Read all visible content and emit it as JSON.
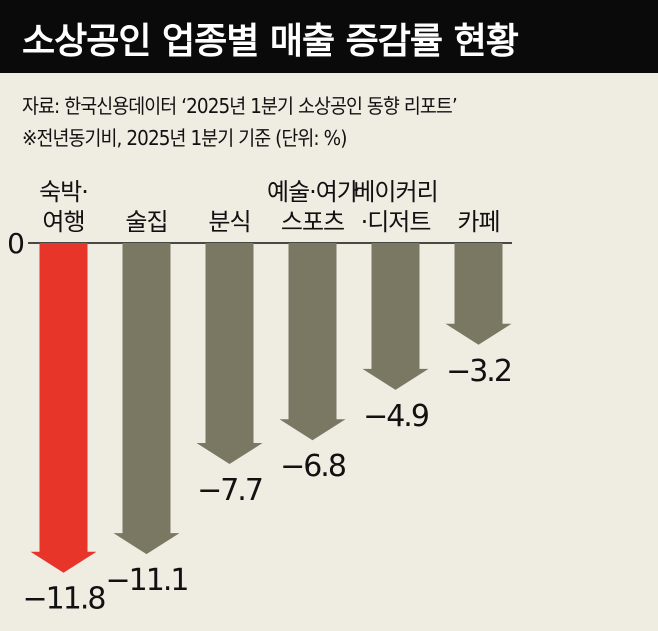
{
  "title": "소상공인 업종별 매출 증감률 현황",
  "source": "자료: 한국신용데이터 ‘2025년 1분기 소상공인 동향 리포트’",
  "note": "※전년동기비, 2025년 1분기 기준 (단위: %)",
  "colors": {
    "highlight": "#e8352a",
    "default": "#7a7862",
    "background": "#efece2",
    "title_bar": "#0a0a0a"
  },
  "chart_data": {
    "type": "bar",
    "title": "소상공인 업종별 매출 증감률 현황",
    "xlabel": "",
    "ylabel": "%",
    "zero_label": "0",
    "categories": [
      [
        "숙박·",
        "여행"
      ],
      [
        "술집"
      ],
      [
        "분식"
      ],
      [
        "예술·여가",
        "스포츠"
      ],
      [
        "베이커리",
        "·디저트"
      ],
      [
        "카페"
      ]
    ],
    "values": [
      -11.8,
      -11.1,
      -7.7,
      -6.8,
      -4.9,
      -3.2
    ],
    "value_labels": [
      "−11.8",
      "−11.1",
      "−7.7",
      "−6.8",
      "−4.9",
      "−3.2"
    ],
    "highlight_index": 0,
    "grid": false,
    "legend": "none"
  }
}
